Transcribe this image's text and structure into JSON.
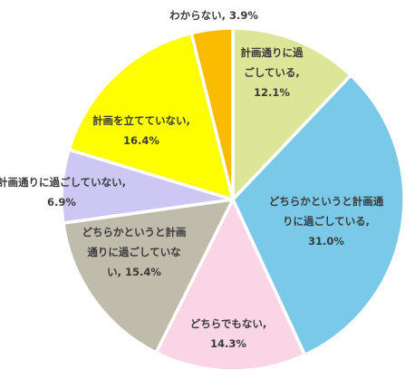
{
  "chart_data": {
    "type": "pie",
    "title": "",
    "start": "top",
    "direction": "clockwise",
    "slices": [
      {
        "label": "計画通りに過ごしている",
        "value": 12.1,
        "value_text": "12.1%",
        "color": "#dce598",
        "lines": [
          "計画通りに過",
          "ごしている,",
          "12.1%"
        ]
      },
      {
        "label": "どちらかというと計画通りに過ごしている",
        "value": 31.0,
        "value_text": "31.0%",
        "color": "#7ac9e8",
        "lines": [
          "どちらかというと計画通",
          "りに過ごしている,",
          "31.0%"
        ]
      },
      {
        "label": "どちらでもない",
        "value": 14.3,
        "value_text": "14.3%",
        "color": "#f9d5e5",
        "lines": [
          "どちらでもない,",
          "14.3%"
        ]
      },
      {
        "label": "どちらかというと計画通りに過ごしていない",
        "value": 15.4,
        "value_text": "15.4%",
        "color": "#bfbcab",
        "lines": [
          "どちらかというと計画",
          "通りに過ごしていな",
          "い, 15.4%"
        ]
      },
      {
        "label": "計画通りに過ごしていない",
        "value": 6.9,
        "value_text": "6.9%",
        "color": "#cdc8f3",
        "lines": [
          "計画通りに過ごしていない,",
          "6.9%"
        ]
      },
      {
        "label": "計画を立てていない",
        "value": 16.4,
        "value_text": "16.4%",
        "color": "#fffe00",
        "lines": [
          "計画を立てていない,",
          "16.4%"
        ]
      },
      {
        "label": "わからない",
        "value": 3.9,
        "value_text": "3.9%",
        "color": "#fbbb00",
        "lines": [
          "わからない, 3.9%"
        ]
      }
    ]
  }
}
